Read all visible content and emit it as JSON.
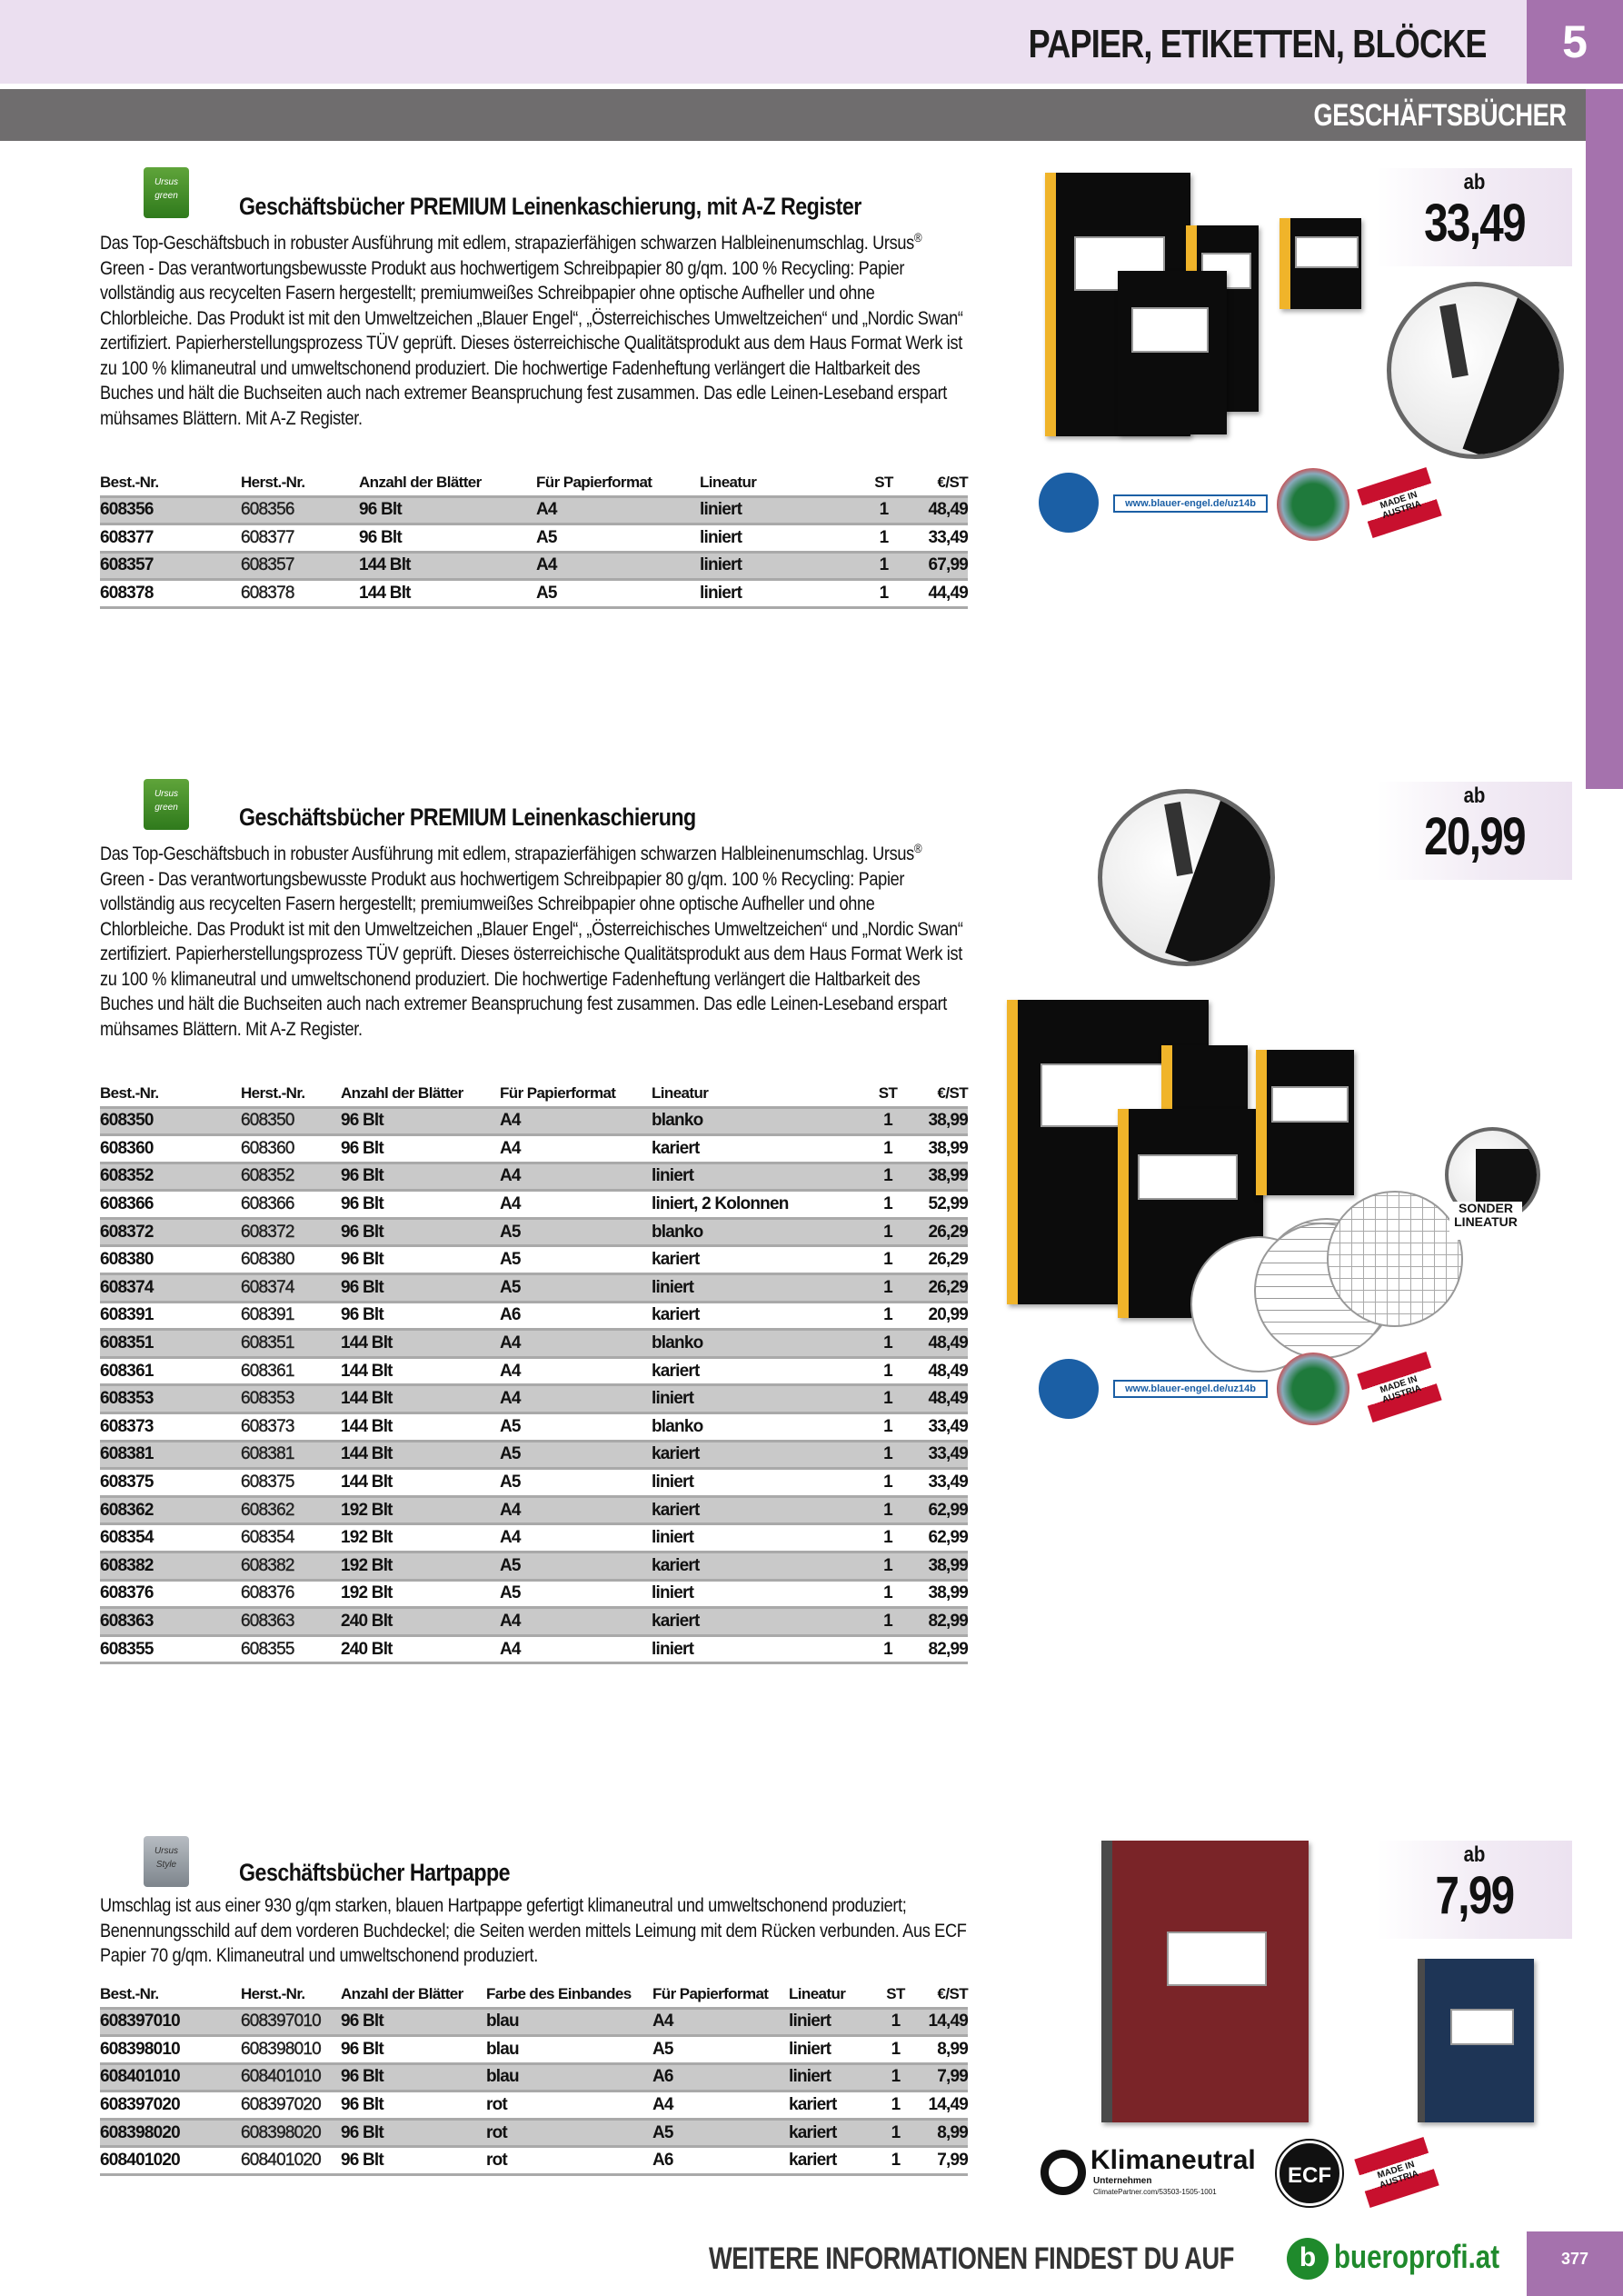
{
  "header": {
    "chapter_number": "5",
    "chapter_title": "PAPIER, ETIKETTEN, BLÖCKE",
    "section_title": "GESCHÄFTSBÜCHER"
  },
  "products": [
    {
      "brand_logo": "Ursus green",
      "title": "Geschäftsbücher PREMIUM Leinenkaschierung, mit A-Z Register",
      "description_pre": "Das Top-Geschäftsbuch in robuster Ausführung mit edlem, strapazierfähigen schwarzen Halbleinenumschlag. Ursus",
      "registered": "®",
      "description_post": " Green - Das verantwortungsbewusste Produkt aus hochwertigem Schreibpapier 80 g/qm. 100 % Recycling: Papier vollständig aus recycelten Fasern hergestellt; premiumweißes Schreibpapier ohne optische Aufheller und ohne Chlorbleiche. Das Produkt ist mit den Umweltzeichen „Blauer Engel“, „Österreichisches Umweltzeichen“ und „Nordic Swan“ zertifiziert. Papierherstellungsprozess TÜV geprüft. Dieses österreichi­sche Qualitätsprodukt aus dem Haus Format Werk ist zu 100 % klimaneutral und umweltschonend produziert. Die hochwertige Fadenheftung verlängert die Haltbarkeit des Buches und hält die Buchseiten auch nach ext­remer Beanspruchung fest zusammen. Das edle Leinen-Leseband erspart mühsames Blättern. Mit A-Z Regis­ter.",
      "price_prefix": "ab",
      "price": "33,49",
      "badge_url": "www.blauer-engel.de/uz14b",
      "badge_made_in": "MADE IN AUSTRIA",
      "columns": [
        "Best.-Nr.",
        "Herst.-Nr.",
        "Anzahl der Blätter",
        "Für Papierformat",
        "Lineatur",
        "ST",
        "€/ST"
      ],
      "rows": [
        [
          "608356",
          "608356",
          "96 Blt",
          "A4",
          "liniert",
          "1",
          "48,49"
        ],
        [
          "608377",
          "608377",
          "96 Blt",
          "A5",
          "liniert",
          "1",
          "33,49"
        ],
        [
          "608357",
          "608357",
          "144 Blt",
          "A4",
          "liniert",
          "1",
          "67,99"
        ],
        [
          "608378",
          "608378",
          "144 Blt",
          "A5",
          "liniert",
          "1",
          "44,49"
        ]
      ]
    },
    {
      "brand_logo": "Ursus green",
      "title": "Geschäftsbücher PREMIUM Leinenkaschierung",
      "description_pre": "Das Top-Geschäftsbuch in robuster Ausführung mit edlem, strapazierfähigen schwarzen Halbleinenumschlag. Ursus",
      "registered": "®",
      "description_post": " Green - Das verantwortungsbewusste Produkt aus hochwertigem Schreibpapier 80 g/qm. 100 % Recycling: Papier vollständig aus recycelten Fasern hergestellt; premiumweißes Schreibpapier ohne optische Aufheller und ohne Chlorbleiche. Das Produkt ist mit den Umweltzeichen „Blauer Engel“, „Österreichisches Umweltzeichen“ und „Nordic Swan“ zertifiziert. Papierherstellungsprozess TÜV geprüft. Dieses österreichi­sche Qualitätsprodukt aus dem Haus Format Werk ist zu 100 % klimaneutral und umweltschonend produziert. Die hochwertige Fadenheftung verlängert die Haltbarkeit des Buches und hält die Buchseiten auch nach ext­remer Beanspruchung fest zusammen. Das edle Leinen-Leseband erspart mühsames Blättern. Mit A-Z Regis­ter.",
      "price_prefix": "ab",
      "price": "20,99",
      "badge_url": "www.blauer-engel.de/uz14b",
      "badge_made_in": "MADE IN AUSTRIA",
      "sonder_label": "SONDER LINEATUR",
      "columns": [
        "Best.-Nr.",
        "Herst.-Nr.",
        "Anzahl der Blätter",
        "Für Papierformat",
        "Lineatur",
        "ST",
        "€/ST"
      ],
      "rows": [
        [
          "608350",
          "608350",
          "96 Blt",
          "A4",
          "blanko",
          "1",
          "38,99"
        ],
        [
          "608360",
          "608360",
          "96 Blt",
          "A4",
          "kariert",
          "1",
          "38,99"
        ],
        [
          "608352",
          "608352",
          "96 Blt",
          "A4",
          "liniert",
          "1",
          "38,99"
        ],
        [
          "608366",
          "608366",
          "96 Blt",
          "A4",
          "liniert, 2 Kolonnen",
          "1",
          "52,99"
        ],
        [
          "608372",
          "608372",
          "96 Blt",
          "A5",
          "blanko",
          "1",
          "26,29"
        ],
        [
          "608380",
          "608380",
          "96 Blt",
          "A5",
          "kariert",
          "1",
          "26,29"
        ],
        [
          "608374",
          "608374",
          "96 Blt",
          "A5",
          "liniert",
          "1",
          "26,29"
        ],
        [
          "608391",
          "608391",
          "96 Blt",
          "A6",
          "kariert",
          "1",
          "20,99"
        ],
        [
          "608351",
          "608351",
          "144 Blt",
          "A4",
          "blanko",
          "1",
          "48,49"
        ],
        [
          "608361",
          "608361",
          "144 Blt",
          "A4",
          "kariert",
          "1",
          "48,49"
        ],
        [
          "608353",
          "608353",
          "144 Blt",
          "A4",
          "liniert",
          "1",
          "48,49"
        ],
        [
          "608373",
          "608373",
          "144 Blt",
          "A5",
          "blanko",
          "1",
          "33,49"
        ],
        [
          "608381",
          "608381",
          "144 Blt",
          "A5",
          "kariert",
          "1",
          "33,49"
        ],
        [
          "608375",
          "608375",
          "144 Blt",
          "A5",
          "liniert",
          "1",
          "33,49"
        ],
        [
          "608362",
          "608362",
          "192 Blt",
          "A4",
          "kariert",
          "1",
          "62,99"
        ],
        [
          "608354",
          "608354",
          "192 Blt",
          "A4",
          "liniert",
          "1",
          "62,99"
        ],
        [
          "608382",
          "608382",
          "192 Blt",
          "A5",
          "kariert",
          "1",
          "38,99"
        ],
        [
          "608376",
          "608376",
          "192 Blt",
          "A5",
          "liniert",
          "1",
          "38,99"
        ],
        [
          "608363",
          "608363",
          "240 Blt",
          "A4",
          "kariert",
          "1",
          "82,99"
        ],
        [
          "608355",
          "608355",
          "240 Blt",
          "A4",
          "liniert",
          "1",
          "82,99"
        ]
      ]
    },
    {
      "brand_logo": "Ursus Style",
      "title": "Geschäftsbücher Hartpappe",
      "description_pre": "Umschlag ist aus einer 930 g/qm starken, blauen Hartpappe gefertigt klimaneutral und umweltschonend pro­duziert; Benennungsschild auf dem vorderen Buchdeckel; die Seiten werden mittels Leimung mit dem Rücken verbunden. Aus ECF Papier 70 g/qm. Klimaneutral und umweltschonend produziert.",
      "registered": "",
      "description_post": "",
      "price_prefix": "ab",
      "price": "7,99",
      "badge_klima": "Klimaneutral",
      "badge_klima_sub": "Unternehmen",
      "badge_klima_url": "ClimatePartner.com/53503-1505-1001",
      "badge_ecf": "ECF",
      "badge_made_in": "MADE IN AUSTRIA",
      "columns": [
        "Best.-Nr.",
        "Herst.-Nr.",
        "Anzahl der Blätter",
        "Farbe des Einbandes",
        "Für Papierformat",
        "Lineatur",
        "ST",
        "€/ST"
      ],
      "rows": [
        [
          "608397010",
          "608397010",
          "96 Blt",
          "blau",
          "A4",
          "liniert",
          "1",
          "14,49"
        ],
        [
          "608398010",
          "608398010",
          "96 Blt",
          "blau",
          "A5",
          "liniert",
          "1",
          "8,99"
        ],
        [
          "608401010",
          "608401010",
          "96 Blt",
          "blau",
          "A6",
          "liniert",
          "1",
          "7,99"
        ],
        [
          "608397020",
          "608397020",
          "96 Blt",
          "rot",
          "A4",
          "kariert",
          "1",
          "14,49"
        ],
        [
          "608398020",
          "608398020",
          "96 Blt",
          "rot",
          "A5",
          "kariert",
          "1",
          "8,99"
        ],
        [
          "608401020",
          "608401020",
          "96 Blt",
          "rot",
          "A6",
          "kariert",
          "1",
          "7,99"
        ]
      ]
    }
  ],
  "footer": {
    "text": "WEITERE INFORMATIONEN FINDEST DU AUF",
    "site_logo": "b",
    "site": "bueroprofi.at",
    "page_number": "377"
  },
  "colors": {
    "accent_purple": "#a572ad",
    "header_band": "#ebdff0",
    "section_bar": "#6f6d6e",
    "row_shade": "#c9c9c9",
    "brand_green": "#1f8a2c"
  }
}
